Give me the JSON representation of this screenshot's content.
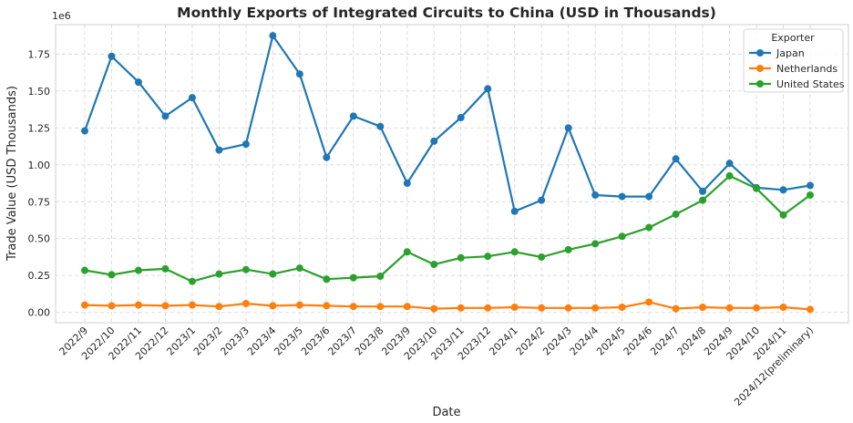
{
  "chart_data": {
    "type": "line",
    "title": "Monthly Exports of Integrated Circuits to China (USD in Thousands)",
    "xlabel": "Date",
    "ylabel": "Trade Value (USD Thousands)",
    "y_offset_label": "1e6",
    "ylim": [
      -0.07,
      1.95
    ],
    "yticks": [
      "0.00",
      "0.25",
      "0.50",
      "0.75",
      "1.00",
      "1.25",
      "1.50",
      "1.75"
    ],
    "ytick_values": [
      0,
      0.25,
      0.5,
      0.75,
      1.0,
      1.25,
      1.5,
      1.75
    ],
    "grid": true,
    "legend_title": "Exporter",
    "legend_position": "top-right",
    "categories": [
      "2022/9",
      "2022/10",
      "2022/11",
      "2022/12",
      "2023/1",
      "2023/2",
      "2023/3",
      "2023/4",
      "2023/5",
      "2023/6",
      "2023/7",
      "2023/8",
      "2023/9",
      "2023/10",
      "2023/11",
      "2023/12",
      "2024/1",
      "2024/2",
      "2024/3",
      "2024/4",
      "2024/5",
      "2024/6",
      "2024/7",
      "2024/8",
      "2024/9",
      "2024/10",
      "2024/11",
      "2024/12(preliminary)"
    ],
    "series": [
      {
        "name": "Japan",
        "color": "#1f77b4",
        "values": [
          1.23,
          1.735,
          1.56,
          1.33,
          1.455,
          1.1,
          1.14,
          1.875,
          1.615,
          1.05,
          1.33,
          1.26,
          0.875,
          1.16,
          1.32,
          1.515,
          0.685,
          0.76,
          1.25,
          0.795,
          0.785,
          0.785,
          1.04,
          0.82,
          1.01,
          0.845,
          0.83,
          0.86
        ]
      },
      {
        "name": "Netherlands",
        "color": "#ff7f0e",
        "values": [
          0.05,
          0.045,
          0.05,
          0.045,
          0.05,
          0.04,
          0.06,
          0.045,
          0.05,
          0.045,
          0.04,
          0.04,
          0.04,
          0.025,
          0.03,
          0.03,
          0.035,
          0.03,
          0.03,
          0.03,
          0.035,
          0.07,
          0.025,
          0.035,
          0.03,
          0.03,
          0.035,
          0.02
        ]
      },
      {
        "name": "United States",
        "color": "#2ca02c",
        "values": [
          0.285,
          0.255,
          0.285,
          0.295,
          0.21,
          0.26,
          0.29,
          0.26,
          0.3,
          0.225,
          0.235,
          0.245,
          0.41,
          0.325,
          0.37,
          0.38,
          0.41,
          0.375,
          0.425,
          0.465,
          0.515,
          0.575,
          0.665,
          0.76,
          0.925,
          0.84,
          0.66,
          0.795
        ]
      }
    ]
  }
}
